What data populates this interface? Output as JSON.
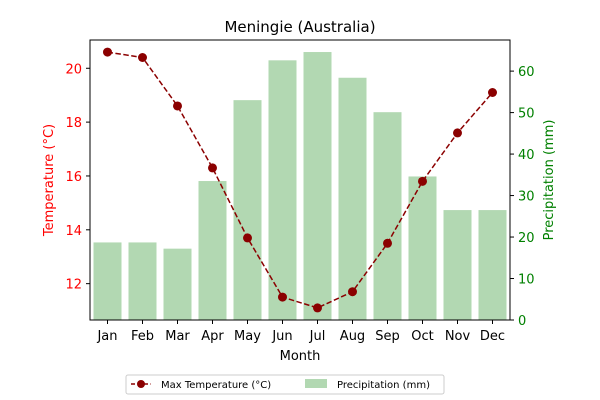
{
  "chart_data": {
    "type": "bar+line",
    "title": "Meningie (Australia)",
    "xlabel": "Month",
    "categories": [
      "Jan",
      "Feb",
      "Mar",
      "Apr",
      "May",
      "Jun",
      "Jul",
      "Aug",
      "Sep",
      "Oct",
      "Nov",
      "Dec"
    ],
    "left_axis": {
      "label": "Temperature (°C)",
      "color": "#ff0000",
      "ylim": [
        10.65,
        21.05
      ],
      "ticks": [
        12,
        14,
        16,
        18,
        20
      ]
    },
    "right_axis": {
      "label": "Precipitation (mm)",
      "color": "#008000",
      "ylim": [
        0,
        67.5
      ],
      "ticks": [
        0,
        10,
        20,
        30,
        40,
        50,
        60
      ]
    },
    "series": [
      {
        "name": "Max Temperature (°C)",
        "kind": "line",
        "axis": "left",
        "color": "#8b0000",
        "style": "dashed",
        "marker": "circle",
        "values": [
          20.6,
          20.4,
          18.6,
          16.3,
          13.7,
          11.5,
          11.1,
          11.7,
          13.5,
          15.8,
          17.6,
          19.1
        ]
      },
      {
        "name": "Precipitation (mm)",
        "kind": "bar",
        "axis": "right",
        "color": "#b2d8b2",
        "values": [
          18.7,
          18.7,
          17.2,
          33.5,
          53.0,
          62.6,
          64.6,
          58.4,
          50.1,
          34.6,
          26.5,
          26.5
        ]
      }
    ],
    "legend": {
      "placement": "bottom-center",
      "columns": 2
    },
    "grid": false
  }
}
